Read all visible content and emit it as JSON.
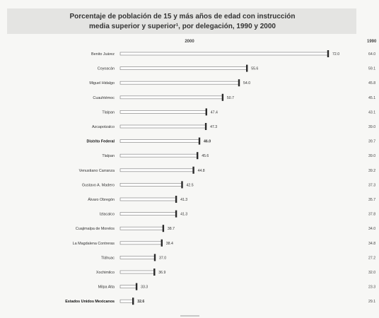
{
  "chart_data": {
    "type": "bar",
    "orientation": "horizontal",
    "title_line1": "Porcentaje de población de 15 y más años de edad con instrucción",
    "title_line2": "media superior y superior¹, por delegación, 1990 y 2000",
    "column_2000": "2000",
    "column_1990": "1990",
    "xlim": [
      30,
      75
    ],
    "highlighted": [
      "Distrito Federal",
      "Estados Unidos Mexicanos"
    ],
    "categories": [
      "Benito Juárez",
      "Coyoacán",
      "Miguel Hidalgo",
      "Cuauhtémoc",
      "Tlalpan",
      "Azcapotzalco",
      "Distrito Federal",
      "Tlalpan",
      "Venustiano Carranza",
      "Gustavo A. Madero",
      "Álvaro Obregón",
      "Iztacalco",
      "Cuajimalpa de Morelos",
      "La Magdalena Contreras",
      "Tláhuac",
      "Xochimilco",
      "Milpa Alta",
      "Estados Unidos Mexicanos"
    ],
    "series": [
      {
        "values": [
          72.0,
          55.6,
          54.0,
          50.7,
          47.4,
          47.3,
          46.0,
          45.6,
          44.8,
          42.5,
          41.3,
          41.3,
          38.7,
          38.4,
          37.0,
          36.9,
          33.3,
          32.6
        ]
      }
    ],
    "values_1990": [
      "64.0",
      "59.1",
      "45.8",
      "45.1",
      "43.1",
      "39.0",
      "39.7",
      "39.0",
      "39.2",
      "37.3",
      "35.7",
      "37.8",
      "34.0",
      "34.8",
      "27.2",
      "32.0",
      "23.3",
      "29.1"
    ]
  }
}
